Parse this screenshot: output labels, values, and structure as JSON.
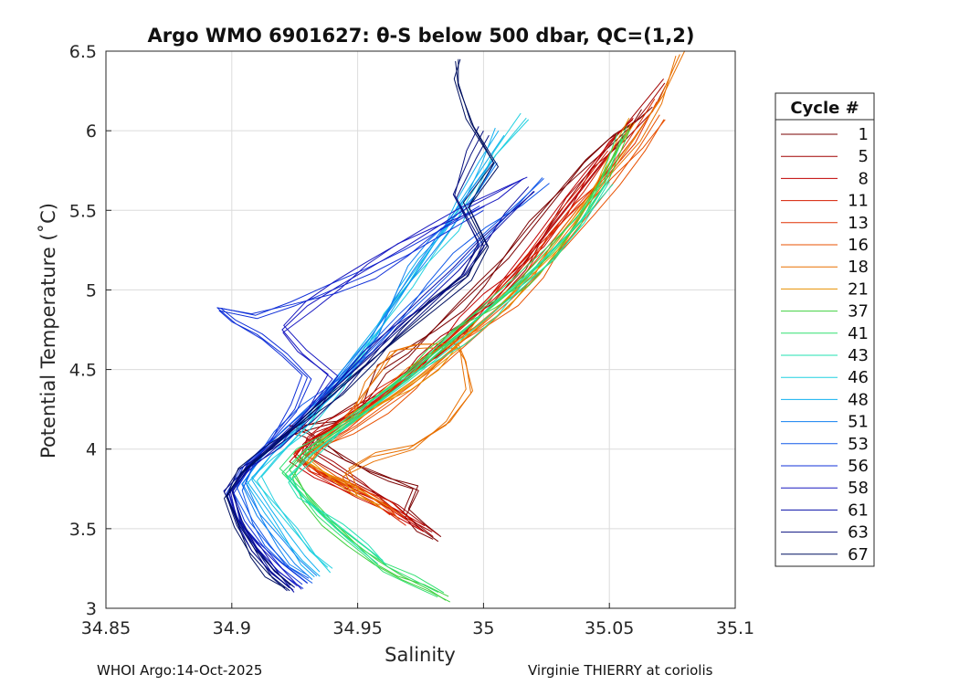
{
  "chart_data": {
    "type": "line",
    "title": "Argo WMO 6901627: θ-S below 500 dbar,  QC=(1,2)",
    "xlabel": "Salinity",
    "ylabel": "Potential Temperature (˚C)",
    "xlim": [
      34.85,
      35.1
    ],
    "ylim": [
      3,
      6.5
    ],
    "xticks": [
      34.85,
      34.9,
      34.95,
      35,
      35.05,
      35.1
    ],
    "xtick_labels": [
      "34.85",
      "34.9",
      "34.95",
      "35",
      "35.05",
      "35.1"
    ],
    "yticks": [
      3,
      3.5,
      4,
      4.5,
      5,
      5.5,
      6,
      6.5
    ],
    "ytick_labels": [
      "3",
      "3.5",
      "4",
      "4.5",
      "5",
      "5.5",
      "6",
      "6.5"
    ],
    "grid": true,
    "legend": {
      "title": "Cycle #",
      "placement": "outside-right",
      "entries": [
        "1",
        "5",
        "8",
        "11",
        "13",
        "16",
        "18",
        "21",
        "37",
        "41",
        "43",
        "46",
        "48",
        "51",
        "53",
        "56",
        "58",
        "61",
        "63",
        "67"
      ]
    },
    "series": [
      {
        "name": "1",
        "color": "#7a0000",
        "x": [
          34.982,
          34.975,
          34.968,
          34.972,
          34.962,
          34.955,
          34.95,
          34.945,
          34.94,
          34.935,
          34.93,
          34.925,
          34.93,
          34.94,
          34.95,
          34.955,
          34.96,
          34.97,
          34.98,
          34.99,
          35.0,
          35.01,
          35.02,
          35.03,
          35.04,
          35.05,
          35.06,
          35.065
        ],
        "y": [
          3.42,
          3.5,
          3.6,
          3.75,
          3.8,
          3.85,
          3.9,
          3.95,
          4.0,
          4.05,
          4.1,
          4.12,
          4.15,
          4.2,
          4.3,
          4.4,
          4.5,
          4.6,
          4.75,
          4.9,
          5.05,
          5.2,
          5.4,
          5.6,
          5.8,
          5.95,
          6.05,
          6.12
        ]
      },
      {
        "name": "5",
        "color": "#a00000",
        "x": [
          34.98,
          34.972,
          34.965,
          34.958,
          34.95,
          34.94,
          34.93,
          34.935,
          34.945,
          34.955,
          34.965,
          34.975,
          34.985,
          34.995,
          35.005,
          35.015,
          35.025,
          35.035,
          35.045,
          35.055,
          35.065,
          35.072
        ],
        "y": [
          3.45,
          3.55,
          3.65,
          3.72,
          3.8,
          3.9,
          4.0,
          4.1,
          4.2,
          4.3,
          4.42,
          4.55,
          4.68,
          4.82,
          4.98,
          5.15,
          5.35,
          5.55,
          5.75,
          5.95,
          6.15,
          6.3
        ]
      },
      {
        "name": "8",
        "color": "#c00000",
        "x": [
          34.975,
          34.965,
          34.955,
          34.945,
          34.935,
          34.925,
          34.93,
          34.94,
          34.952,
          34.962,
          34.972,
          34.982,
          34.992,
          35.002,
          35.012,
          35.022,
          35.032,
          35.042,
          35.052,
          35.06
        ],
        "y": [
          3.5,
          3.6,
          3.7,
          3.78,
          3.85,
          3.95,
          4.05,
          4.15,
          4.28,
          4.4,
          4.52,
          4.66,
          4.8,
          4.95,
          5.12,
          5.3,
          5.5,
          5.7,
          5.9,
          6.05
        ]
      },
      {
        "name": "11",
        "color": "#d41c00",
        "x": [
          34.97,
          34.962,
          34.952,
          34.942,
          34.932,
          34.925,
          34.935,
          34.948,
          34.96,
          34.97,
          34.98,
          34.99,
          35.0,
          35.01,
          35.02,
          35.03,
          35.04,
          35.05
        ],
        "y": [
          3.55,
          3.65,
          3.72,
          3.8,
          3.88,
          3.98,
          4.1,
          4.22,
          4.35,
          4.48,
          4.6,
          4.74,
          4.88,
          5.03,
          5.2,
          5.42,
          5.62,
          5.85
        ]
      },
      {
        "name": "13",
        "color": "#e03000",
        "x": [
          34.965,
          34.958,
          34.948,
          34.938,
          34.928,
          34.932,
          34.944,
          34.956,
          34.968,
          34.978,
          34.988,
          34.998,
          35.008,
          35.018,
          35.028,
          35.038,
          35.048,
          35.058,
          35.068
        ],
        "y": [
          3.6,
          3.68,
          3.75,
          3.82,
          3.92,
          4.02,
          4.15,
          4.28,
          4.42,
          4.55,
          4.68,
          4.82,
          4.97,
          5.13,
          5.32,
          5.52,
          5.72,
          5.95,
          6.2
        ]
      },
      {
        "name": "16",
        "color": "#e85000",
        "x": [
          34.968,
          34.96,
          34.95,
          34.94,
          34.93,
          34.935,
          34.948,
          34.96,
          34.972,
          34.982,
          34.992,
          35.002,
          35.012,
          35.022,
          35.032,
          35.042,
          35.052,
          35.062,
          35.07
        ],
        "y": [
          3.58,
          3.66,
          3.74,
          3.8,
          3.9,
          4.0,
          4.12,
          4.25,
          4.38,
          4.5,
          4.64,
          4.78,
          4.93,
          5.1,
          5.28,
          5.48,
          5.68,
          5.9,
          6.1
        ]
      },
      {
        "name": "18",
        "color": "#e87000",
        "x": [
          34.95,
          34.945,
          34.955,
          34.97,
          34.985,
          34.995,
          34.993,
          34.99,
          34.975,
          34.965,
          34.96,
          34.955,
          34.95,
          34.945,
          34.95,
          34.96,
          34.972,
          34.984,
          34.996,
          35.008,
          35.02,
          35.03,
          35.04,
          35.05,
          35.06,
          35.07,
          35.078
        ],
        "y": [
          3.7,
          3.85,
          3.95,
          4.0,
          4.15,
          4.35,
          4.55,
          4.66,
          4.66,
          4.62,
          4.5,
          4.4,
          4.3,
          4.2,
          4.25,
          4.35,
          4.48,
          4.62,
          4.76,
          4.92,
          5.1,
          5.3,
          5.5,
          5.72,
          5.95,
          6.2,
          6.48
        ]
      },
      {
        "name": "21",
        "color": "#e89000",
        "x": [
          34.96,
          34.952,
          34.945,
          34.938,
          34.93,
          34.935,
          34.946,
          34.958,
          34.97,
          34.98,
          34.99,
          35.0,
          35.01,
          35.02,
          35.03,
          35.04,
          35.05,
          35.06
        ],
        "y": [
          3.62,
          3.7,
          3.78,
          3.84,
          3.92,
          4.02,
          4.14,
          4.27,
          4.4,
          4.52,
          4.66,
          4.8,
          4.96,
          5.12,
          5.32,
          5.55,
          5.8,
          6.05
        ]
      },
      {
        "name": "37",
        "color": "#40d040",
        "x": [
          34.985,
          34.978,
          34.968,
          34.958,
          34.948,
          34.938,
          34.93,
          34.925,
          34.93,
          34.942,
          34.955,
          34.968,
          34.98,
          34.992,
          35.004,
          35.016,
          35.028,
          35.04,
          35.05,
          35.058
        ],
        "y": [
          3.05,
          3.12,
          3.2,
          3.3,
          3.42,
          3.55,
          3.7,
          3.85,
          4.0,
          4.15,
          4.3,
          4.45,
          4.6,
          4.75,
          4.9,
          5.06,
          5.24,
          5.45,
          5.7,
          6.0
        ]
      },
      {
        "name": "41",
        "color": "#30e070",
        "x": [
          34.982,
          34.972,
          34.962,
          34.955,
          34.945,
          34.935,
          34.928,
          34.92,
          34.928,
          34.94,
          34.952,
          34.965,
          34.978,
          34.99,
          35.002,
          35.014,
          35.026,
          35.038,
          35.048,
          35.055
        ],
        "y": [
          3.1,
          3.18,
          3.26,
          3.36,
          3.48,
          3.6,
          3.72,
          3.85,
          3.98,
          4.12,
          4.27,
          4.42,
          4.57,
          4.72,
          4.88,
          5.04,
          5.22,
          5.42,
          5.66,
          5.95
        ]
      },
      {
        "name": "43",
        "color": "#20e0b0",
        "x": [
          34.96,
          34.952,
          34.944,
          34.936,
          34.928,
          34.922,
          34.93,
          34.942,
          34.955,
          34.968,
          34.98,
          34.992,
          35.004,
          35.016,
          35.028,
          35.04,
          35.05
        ],
        "y": [
          3.3,
          3.4,
          3.5,
          3.6,
          3.7,
          3.82,
          3.95,
          4.1,
          4.25,
          4.4,
          4.55,
          4.7,
          4.86,
          5.02,
          5.2,
          5.42,
          5.68
        ]
      },
      {
        "name": "46",
        "color": "#20d0e0",
        "x": [
          34.94,
          34.932,
          34.924,
          34.916,
          34.91,
          34.918,
          34.93,
          34.942,
          34.952,
          34.962,
          34.972,
          34.98,
          34.988,
          34.995,
          35.005,
          35.017
        ],
        "y": [
          3.25,
          3.35,
          3.5,
          3.65,
          3.8,
          3.95,
          4.15,
          4.4,
          4.6,
          4.82,
          5.02,
          5.22,
          5.4,
          5.6,
          5.85,
          6.08
        ]
      },
      {
        "name": "48",
        "color": "#10b0f0",
        "x": [
          34.935,
          34.928,
          34.92,
          34.913,
          34.906,
          34.915,
          34.928,
          34.94,
          34.95,
          34.96,
          34.968,
          34.976,
          34.984,
          34.99,
          34.998,
          35.006
        ],
        "y": [
          3.2,
          3.3,
          3.45,
          3.6,
          3.78,
          3.95,
          4.15,
          4.38,
          4.58,
          4.78,
          4.98,
          5.18,
          5.38,
          5.58,
          5.8,
          6.0
        ]
      },
      {
        "name": "51",
        "color": "#1080f0",
        "x": [
          34.932,
          34.925,
          34.918,
          34.91,
          34.904,
          34.912,
          34.924,
          34.936,
          34.946,
          34.956,
          34.964,
          34.972,
          34.98,
          34.988,
          34.996,
          35.004
        ],
        "y": [
          3.18,
          3.28,
          3.42,
          3.58,
          3.78,
          3.95,
          4.12,
          4.32,
          4.52,
          4.72,
          4.92,
          5.12,
          5.3,
          5.48,
          5.65,
          5.82
        ]
      },
      {
        "name": "53",
        "color": "#1058e8",
        "x": [
          34.93,
          34.922,
          34.915,
          34.908,
          34.902,
          34.908,
          34.918,
          34.93,
          34.942,
          34.954,
          34.966,
          34.978,
          34.99,
          35.002,
          35.014,
          35.024
        ],
        "y": [
          3.16,
          3.26,
          3.4,
          3.56,
          3.76,
          3.92,
          4.08,
          4.26,
          4.44,
          4.64,
          4.84,
          5.02,
          5.2,
          5.38,
          5.55,
          5.7
        ]
      },
      {
        "name": "56",
        "color": "#1030d8",
        "x": [
          34.928,
          34.92,
          34.912,
          34.905,
          34.9,
          34.905,
          34.915,
          34.925,
          34.93,
          34.92,
          34.91,
          34.9,
          34.895,
          34.91,
          34.925,
          34.94,
          34.955,
          34.97,
          34.985,
          35.0
        ],
        "y": [
          3.15,
          3.25,
          3.4,
          3.55,
          3.75,
          3.9,
          4.05,
          4.25,
          4.45,
          4.6,
          4.72,
          4.8,
          4.87,
          4.82,
          4.9,
          5.0,
          5.1,
          5.22,
          5.36,
          5.5
        ]
      },
      {
        "name": "58",
        "color": "#1818c0",
        "x": [
          34.926,
          34.918,
          34.91,
          34.904,
          34.9,
          34.906,
          34.918,
          34.93,
          34.94,
          34.928,
          34.92,
          34.93,
          34.942,
          34.955,
          34.968,
          34.98,
          34.992,
          35.004,
          35.016
        ],
        "y": [
          3.14,
          3.24,
          3.38,
          3.54,
          3.74,
          3.9,
          4.06,
          4.24,
          4.44,
          4.6,
          4.75,
          4.9,
          5.02,
          5.14,
          5.26,
          5.38,
          5.5,
          5.6,
          5.7
        ]
      },
      {
        "name": "61",
        "color": "#0a10a8",
        "x": [
          34.925,
          34.917,
          34.91,
          34.903,
          34.899,
          34.906,
          34.918,
          34.93,
          34.942,
          34.954,
          34.966,
          34.978,
          34.99,
          35.0,
          35.01,
          35.02
        ],
        "y": [
          3.13,
          3.23,
          3.37,
          3.53,
          3.72,
          3.88,
          4.04,
          4.22,
          4.4,
          4.58,
          4.76,
          4.94,
          5.12,
          5.3,
          5.46,
          5.62
        ]
      },
      {
        "name": "63",
        "color": "#081080",
        "x": [
          34.924,
          34.916,
          34.908,
          34.902,
          34.898,
          34.905,
          34.917,
          34.93,
          34.943,
          34.956,
          34.968,
          34.98,
          34.992,
          34.998,
          34.988,
          34.995,
          35.0
        ],
        "y": [
          3.12,
          3.22,
          3.36,
          3.52,
          3.7,
          3.86,
          4.02,
          4.2,
          4.38,
          4.56,
          4.74,
          4.92,
          5.1,
          5.3,
          5.6,
          5.85,
          6.0
        ]
      },
      {
        "name": "67",
        "color": "#001060",
        "x": [
          34.923,
          34.915,
          34.907,
          34.901,
          34.897,
          34.904,
          34.916,
          34.929,
          34.942,
          34.955,
          34.968,
          34.981,
          34.994,
          35.0,
          34.992,
          35.004,
          34.995,
          34.99,
          34.99
        ],
        "y": [
          3.11,
          3.21,
          3.35,
          3.51,
          3.69,
          3.85,
          4.01,
          4.19,
          4.37,
          4.55,
          4.73,
          4.91,
          5.09,
          5.3,
          5.55,
          5.8,
          6.05,
          6.3,
          6.45
        ]
      }
    ]
  },
  "footer": {
    "left": "WHOI Argo:14-Oct-2025",
    "right": "Virginie THIERRY at coriolis"
  }
}
